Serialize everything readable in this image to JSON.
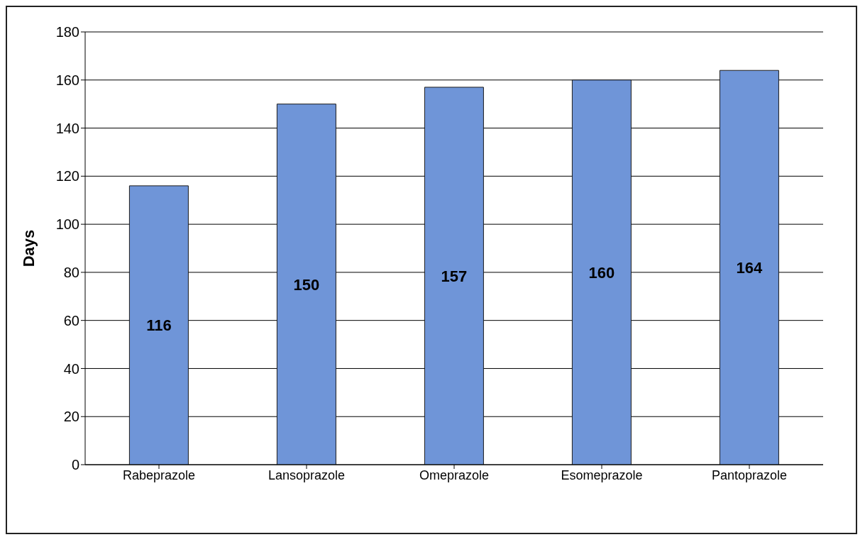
{
  "chart_data": {
    "type": "bar",
    "ylabel": "Days",
    "categories": [
      "Rabeprazole",
      "Lansoprazole",
      "Omeprazole",
      "Esomeprazole",
      "Pantoprazole"
    ],
    "values": [
      116,
      150,
      157,
      160,
      164
    ],
    "color": "#6f95d8",
    "ylim": [
      0,
      180
    ],
    "yticks": [
      0,
      20,
      40,
      60,
      80,
      100,
      120,
      140,
      160,
      180
    ],
    "grid": "y",
    "data_labels": true
  }
}
